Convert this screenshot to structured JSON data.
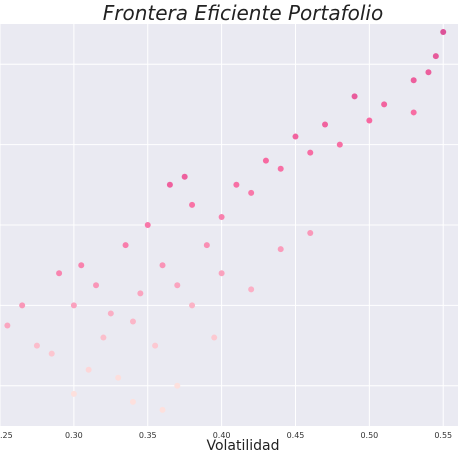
{
  "chart_data": {
    "type": "scatter",
    "title": "Frontera Eficiente Portafolio",
    "xlabel": "Volatilidad",
    "ylabel": "",
    "xlim": [
      0.25,
      0.56
    ],
    "ylim": [
      0.0,
      1.0
    ],
    "x_ticks": [
      0.25,
      0.3,
      0.35,
      0.4,
      0.45,
      0.5,
      0.55
    ],
    "x_tick_labels": [
      ".25",
      "0.30",
      "0.35",
      "0.40",
      "0.45",
      "0.50",
      "0.55"
    ],
    "y_gridlines": [
      0.1,
      0.3,
      0.5,
      0.7,
      0.9
    ],
    "y_tick_labels": [],
    "grid": true,
    "colormap": "RdPu",
    "color_range": [
      "#fde0dd",
      "#f768a1",
      "#7a0177"
    ],
    "background": "#eaeaf2",
    "series": [
      {
        "values_note": "",
        "points": [
          [
            0.3,
            0.3
          ],
          [
            0.32,
            0.22
          ],
          [
            0.305,
            0.4
          ],
          [
            0.315,
            0.35
          ],
          [
            0.325,
            0.28
          ],
          [
            0.34,
            0.26
          ],
          [
            0.335,
            0.45
          ],
          [
            0.35,
            0.5
          ],
          [
            0.36,
            0.4
          ],
          [
            0.345,
            0.33
          ],
          [
            0.37,
            0.35
          ],
          [
            0.38,
            0.55
          ],
          [
            0.39,
            0.45
          ],
          [
            0.365,
            0.6
          ],
          [
            0.375,
            0.62
          ],
          [
            0.4,
            0.52
          ],
          [
            0.41,
            0.6
          ],
          [
            0.42,
            0.58
          ],
          [
            0.43,
            0.66
          ],
          [
            0.44,
            0.64
          ],
          [
            0.45,
            0.72
          ],
          [
            0.46,
            0.68
          ],
          [
            0.47,
            0.75
          ],
          [
            0.48,
            0.7
          ],
          [
            0.49,
            0.82
          ],
          [
            0.5,
            0.76
          ],
          [
            0.51,
            0.8
          ],
          [
            0.53,
            0.86
          ],
          [
            0.545,
            0.92
          ],
          [
            0.55,
            0.98
          ],
          [
            0.53,
            0.78
          ],
          [
            0.54,
            0.88
          ],
          [
            0.285,
            0.18
          ],
          [
            0.29,
            0.38
          ],
          [
            0.31,
            0.14
          ],
          [
            0.33,
            0.12
          ],
          [
            0.355,
            0.2
          ],
          [
            0.37,
            0.1
          ],
          [
            0.395,
            0.22
          ],
          [
            0.42,
            0.34
          ],
          [
            0.44,
            0.44
          ],
          [
            0.46,
            0.48
          ],
          [
            0.3,
            0.08
          ],
          [
            0.34,
            0.06
          ],
          [
            0.36,
            0.04
          ],
          [
            0.38,
            0.3
          ],
          [
            0.4,
            0.38
          ],
          [
            0.255,
            0.25
          ],
          [
            0.265,
            0.3
          ],
          [
            0.275,
            0.2
          ]
        ]
      }
    ]
  }
}
